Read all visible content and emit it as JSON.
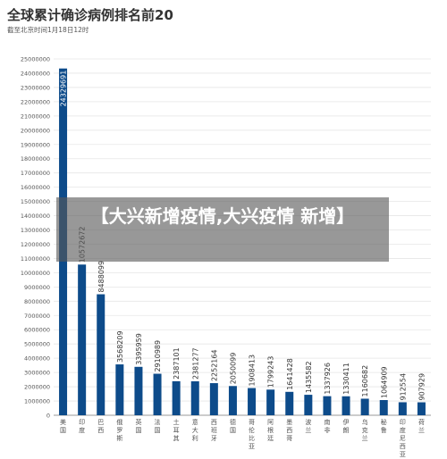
{
  "overlay_text": "【大兴新增疫情,大兴疫情 新增】",
  "colors": {
    "bar": "#0d4b8a",
    "grid": "#e6e6e6",
    "axis": "#9a9a9a",
    "text": "#555555"
  },
  "chart_data": {
    "type": "bar",
    "title": "全球累计确诊病例排名前20",
    "subtitle": "截至北京时间1月18日12时",
    "xlabel": "",
    "ylabel": "",
    "ylim": [
      0,
      25000000
    ],
    "ytick_step": 1000000,
    "grid": true,
    "legend": "none",
    "categories": [
      "美国",
      "印度",
      "巴西",
      "俄罗斯",
      "英国",
      "法国",
      "土耳其",
      "意大利",
      "西班牙",
      "德国",
      "哥伦比亚",
      "阿根廷",
      "墨西哥",
      "波兰",
      "南非",
      "伊朗",
      "乌克兰",
      "秘鲁",
      "印度尼西亚",
      "荷兰"
    ],
    "category_lines": [
      [
        "美",
        "国"
      ],
      [
        "印",
        "度"
      ],
      [
        "巴",
        "西"
      ],
      [
        "俄",
        "罗",
        "斯"
      ],
      [
        "英",
        "国"
      ],
      [
        "法",
        "国"
      ],
      [
        "土",
        "耳",
        "其"
      ],
      [
        "意",
        "大",
        "利"
      ],
      [
        "西",
        "班",
        "牙"
      ],
      [
        "德",
        "国"
      ],
      [
        "哥",
        "伦",
        "比",
        "亚"
      ],
      [
        "阿",
        "根",
        "廷"
      ],
      [
        "墨",
        "西",
        "哥"
      ],
      [
        "波",
        "兰"
      ],
      [
        "南",
        "非"
      ],
      [
        "伊",
        "朗"
      ],
      [
        "乌",
        "克",
        "兰"
      ],
      [
        "秘",
        "鲁"
      ],
      [
        "印",
        "度",
        "尼",
        "西",
        "亚"
      ],
      [
        "荷",
        "兰"
      ]
    ],
    "values": [
      24329691,
      10572672,
      8488099,
      3568209,
      3395959,
      2910989,
      2387101,
      2381277,
      2252164,
      2050099,
      1908413,
      1799243,
      1641428,
      1435582,
      1337926,
      1330411,
      1160682,
      1064909,
      912554,
      907929
    ]
  }
}
